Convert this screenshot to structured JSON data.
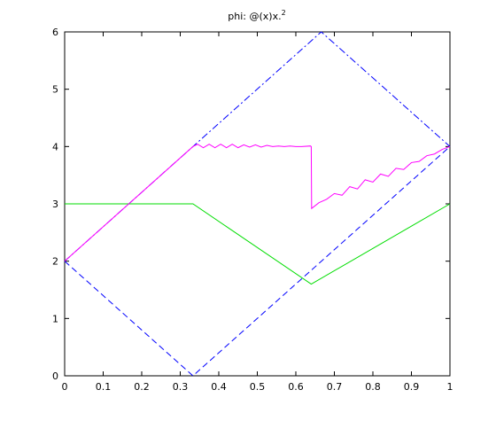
{
  "chart_data": {
    "type": "line",
    "title": "phi: @(x)x.",
    "title_superscript": "2",
    "xlabel": "",
    "ylabel": "",
    "xlim": [
      0,
      1
    ],
    "ylim": [
      0,
      6
    ],
    "xticks": [
      "0",
      "0.1",
      "0.2",
      "0.3",
      "0.4",
      "0.5",
      "0.6",
      "0.7",
      "0.8",
      "0.9",
      "1"
    ],
    "yticks": [
      "0",
      "1",
      "2",
      "3",
      "4",
      "5",
      "6"
    ],
    "grid": false,
    "legend": "none",
    "series": [
      {
        "color": "#0000ff",
        "style": "dashdot",
        "x": [
          0,
          0.333,
          0.666,
          1
        ],
        "y": [
          2,
          4,
          6,
          4
        ]
      },
      {
        "color": "#0000ff",
        "style": "dashed",
        "x": [
          0,
          0.333,
          1
        ],
        "y": [
          2,
          0,
          4
        ]
      },
      {
        "color": "#00dd00",
        "style": "solid",
        "x": [
          0,
          0.333,
          0.64,
          1
        ],
        "y": [
          3,
          3,
          1.6,
          3
        ]
      },
      {
        "color": "#ff00ff",
        "style": "solid",
        "x": [
          0,
          0.333,
          0.345,
          0.36,
          0.375,
          0.39,
          0.405,
          0.42,
          0.435,
          0.45,
          0.465,
          0.48,
          0.495,
          0.51,
          0.525,
          0.54,
          0.555,
          0.57,
          0.585,
          0.6,
          0.615,
          0.638,
          0.64,
          0.641,
          0.66,
          0.68,
          0.7,
          0.72,
          0.74,
          0.76,
          0.78,
          0.8,
          0.82,
          0.84,
          0.86,
          0.88,
          0.9,
          0.92,
          0.94,
          0.96,
          0.98,
          1
        ],
        "y": [
          2,
          4,
          4.04,
          3.98,
          4.04,
          3.98,
          4.04,
          3.98,
          4.04,
          3.98,
          4.03,
          3.99,
          4.03,
          3.99,
          4.02,
          4.0,
          4.01,
          4.0,
          4.01,
          4.0,
          4.0,
          4.01,
          4.0,
          2.92,
          3.02,
          3.08,
          3.18,
          3.15,
          3.3,
          3.26,
          3.42,
          3.38,
          3.52,
          3.48,
          3.62,
          3.6,
          3.72,
          3.74,
          3.84,
          3.87,
          3.95,
          4
        ]
      }
    ]
  }
}
